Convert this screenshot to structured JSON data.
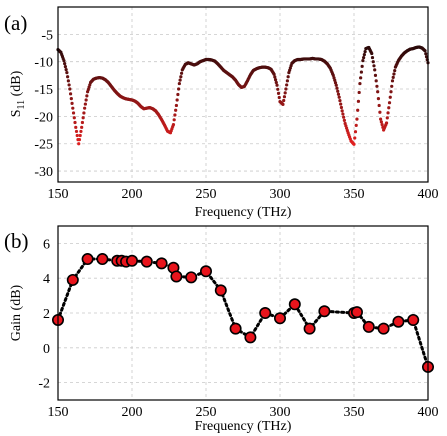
{
  "chart_data": [
    {
      "type": "scatter",
      "panel_label": "(a)",
      "xlabel": "Frequency (THz)",
      "ylabel": "S",
      "ylabel_sub": "11",
      "ylabel_unit": " (dB)",
      "xlim": [
        150,
        400
      ],
      "ylim": [
        -32,
        0
      ],
      "xticks": [
        150,
        200,
        250,
        300,
        350,
        400
      ],
      "yticks": [
        -5,
        -10,
        -15,
        -20,
        -25,
        -30
      ],
      "grid": true,
      "colors": {
        "low": "#e02020",
        "high": "#2a0a0a"
      },
      "x": [
        150,
        152,
        154,
        156,
        158,
        160,
        162,
        164,
        166,
        168,
        170,
        172,
        174,
        176,
        178,
        180,
        182,
        184,
        186,
        188,
        190,
        192,
        194,
        196,
        198,
        200,
        202,
        204,
        206,
        208,
        210,
        212,
        214,
        216,
        218,
        220,
        222,
        224,
        226,
        228,
        230,
        232,
        234,
        236,
        238,
        240,
        242,
        244,
        246,
        248,
        250,
        252,
        254,
        256,
        258,
        260,
        262,
        264,
        266,
        268,
        270,
        272,
        274,
        276,
        278,
        280,
        282,
        284,
        286,
        288,
        290,
        292,
        294,
        296,
        298,
        300,
        302,
        304,
        306,
        308,
        310,
        312,
        314,
        316,
        318,
        320,
        322,
        324,
        326,
        328,
        330,
        332,
        334,
        336,
        338,
        340,
        342,
        344,
        346,
        348,
        350,
        352,
        354,
        356,
        358,
        360,
        362,
        364,
        366,
        368,
        370,
        372,
        374,
        376,
        378,
        380,
        382,
        384,
        386,
        388,
        390,
        392,
        394,
        396,
        398,
        400
      ],
      "y": [
        -7.8,
        -8.3,
        -9.8,
        -12.0,
        -15.0,
        -18.5,
        -22.0,
        -25.0,
        -22.0,
        -18.5,
        -15.5,
        -13.8,
        -13.2,
        -13.0,
        -12.9,
        -13.0,
        -13.3,
        -13.8,
        -14.5,
        -15.2,
        -15.8,
        -16.3,
        -16.6,
        -16.8,
        -16.9,
        -17.0,
        -17.2,
        -17.6,
        -18.2,
        -18.6,
        -18.5,
        -18.4,
        -18.6,
        -19.0,
        -19.7,
        -20.6,
        -21.6,
        -22.7,
        -23.0,
        -21.5,
        -18.0,
        -14.0,
        -11.5,
        -10.5,
        -10.2,
        -10.4,
        -10.6,
        -10.4,
        -10.0,
        -9.8,
        -9.6,
        -9.6,
        -9.7,
        -9.9,
        -10.4,
        -11.0,
        -11.6,
        -12.0,
        -12.4,
        -12.8,
        -13.4,
        -14.2,
        -14.7,
        -14.5,
        -13.5,
        -12.4,
        -11.6,
        -11.3,
        -11.1,
        -11.0,
        -11.0,
        -11.1,
        -11.4,
        -12.3,
        -14.3,
        -17.3,
        -17.8,
        -15.0,
        -12.0,
        -10.3,
        -9.8,
        -9.6,
        -9.6,
        -9.5,
        -9.5,
        -9.5,
        -9.4,
        -9.5,
        -9.5,
        -9.6,
        -9.9,
        -10.4,
        -11.2,
        -12.5,
        -14.3,
        -16.5,
        -19.0,
        -21.3,
        -23.0,
        -24.5,
        -25.1,
        -20.5,
        -14.0,
        -9.8,
        -7.6,
        -7.4,
        -8.5,
        -11.5,
        -15.5,
        -20.5,
        -22.5,
        -21.2,
        -17.5,
        -13.5,
        -11.0,
        -9.8,
        -9.0,
        -8.4,
        -8.0,
        -7.7,
        -7.6,
        -7.4,
        -7.3,
        -7.5,
        -8.0,
        -10.2
      ]
    },
    {
      "type": "line",
      "panel_label": "(b)",
      "xlabel": "Frequency (THz)",
      "ylabel": "Gain (dB)",
      "xlim": [
        150,
        400
      ],
      "ylim": [
        -3,
        7
      ],
      "xticks": [
        150,
        200,
        250,
        300,
        350,
        400
      ],
      "yticks": [
        -2,
        0,
        2,
        4,
        6
      ],
      "grid": true,
      "marker_color": "#e8141c",
      "x": [
        150,
        160,
        170,
        180,
        190,
        193,
        196,
        200,
        210,
        220,
        228,
        230,
        240,
        250,
        260,
        270,
        280,
        290,
        300,
        310,
        320,
        330,
        350,
        352,
        360,
        370,
        380,
        390,
        400
      ],
      "y": [
        1.6,
        3.9,
        5.1,
        5.1,
        5.0,
        5.0,
        4.95,
        5.0,
        4.95,
        4.85,
        4.6,
        4.1,
        4.05,
        4.4,
        3.3,
        1.1,
        0.6,
        2.0,
        1.7,
        2.5,
        1.1,
        2.1,
        2.0,
        2.05,
        1.2,
        1.1,
        1.5,
        1.6,
        -1.1
      ]
    }
  ]
}
